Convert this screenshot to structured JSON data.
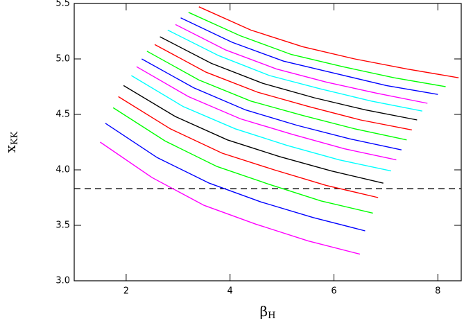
{
  "chart_data": {
    "type": "line",
    "xlabel": "β",
    "xlabel_sub": "H",
    "ylabel": "x",
    "ylabel_sub": "KK",
    "xlim": [
      1,
      8.45
    ],
    "xticks": [
      2,
      4,
      6,
      8
    ],
    "ylim": [
      3.0,
      5.5
    ],
    "yticks": [
      {
        "value": 3.0,
        "label": "3.0"
      },
      3.5,
      {
        "value": 4.0,
        "label": "4.0"
      },
      4.5,
      {
        "value": 5.0,
        "label": "5.0"
      },
      5.5
    ],
    "hline": 3.83,
    "series": [
      {
        "color": "#ff00ff",
        "x": [
          1.5,
          2.5,
          3.5,
          4.5,
          5.5,
          6.5
        ],
        "values": [
          4.25,
          3.93,
          3.68,
          3.51,
          3.36,
          3.24
        ]
      },
      {
        "color": "#0000ff",
        "x": [
          1.6,
          2.6,
          3.6,
          4.6,
          5.6,
          6.6
        ],
        "values": [
          4.42,
          4.11,
          3.88,
          3.71,
          3.57,
          3.45
        ]
      },
      {
        "color": "#00ff00",
        "x": [
          1.75,
          2.75,
          3.75,
          4.75,
          5.75,
          6.75
        ],
        "values": [
          4.56,
          4.26,
          4.03,
          3.87,
          3.72,
          3.61
        ]
      },
      {
        "color": "#ff0000",
        "x": [
          1.85,
          2.85,
          3.85,
          4.85,
          5.85,
          6.85
        ],
        "values": [
          4.66,
          4.37,
          4.15,
          4.0,
          3.86,
          3.75
        ]
      },
      {
        "color": "#000000",
        "x": [
          1.95,
          2.95,
          3.95,
          4.95,
          5.95,
          6.95
        ],
        "values": [
          4.76,
          4.48,
          4.27,
          4.12,
          3.99,
          3.88
        ]
      },
      {
        "color": "#00ffff",
        "x": [
          2.1,
          3.1,
          4.1,
          5.1,
          6.1,
          7.1
        ],
        "values": [
          4.85,
          4.57,
          4.37,
          4.22,
          4.09,
          3.99
        ]
      },
      {
        "color": "#ff00ff",
        "x": [
          2.2,
          3.2,
          4.2,
          5.2,
          6.2,
          7.2
        ],
        "values": [
          4.93,
          4.66,
          4.46,
          4.32,
          4.19,
          4.09
        ]
      },
      {
        "color": "#0000ff",
        "x": [
          2.3,
          3.3,
          4.3,
          5.3,
          6.3,
          7.3
        ],
        "values": [
          5.0,
          4.74,
          4.54,
          4.4,
          4.28,
          4.18
        ]
      },
      {
        "color": "#00ff00",
        "x": [
          2.4,
          3.4,
          4.4,
          5.4,
          6.4,
          7.4
        ],
        "values": [
          5.07,
          4.81,
          4.62,
          4.49,
          4.37,
          4.27
        ]
      },
      {
        "color": "#ff0000",
        "x": [
          2.55,
          3.54,
          4.53,
          5.52,
          6.51,
          7.5
        ],
        "values": [
          5.13,
          4.88,
          4.7,
          4.57,
          4.45,
          4.36
        ]
      },
      {
        "color": "#000000",
        "x": [
          2.65,
          3.64,
          4.63,
          5.62,
          6.61,
          7.6
        ],
        "values": [
          5.2,
          4.96,
          4.78,
          4.65,
          4.54,
          4.45
        ]
      },
      {
        "color": "#00ffff",
        "x": [
          2.8,
          3.78,
          4.76,
          5.74,
          6.72,
          7.7
        ],
        "values": [
          5.26,
          5.03,
          4.85,
          4.73,
          4.62,
          4.53
        ]
      },
      {
        "color": "#ff00ff",
        "x": [
          2.95,
          3.92,
          4.89,
          5.86,
          6.83,
          7.8
        ],
        "values": [
          5.31,
          5.08,
          4.91,
          4.79,
          4.69,
          4.6
        ]
      },
      {
        "color": "#0000ff",
        "x": [
          3.05,
          4.04,
          5.03,
          6.02,
          7.01,
          8.0
        ],
        "values": [
          5.37,
          5.15,
          4.98,
          4.87,
          4.76,
          4.68
        ]
      },
      {
        "color": "#00ff00",
        "x": [
          3.2,
          4.19,
          5.18,
          6.17,
          7.16,
          8.15
        ],
        "values": [
          5.42,
          5.21,
          5.04,
          4.93,
          4.83,
          4.75
        ]
      },
      {
        "color": "#ff0000",
        "x": [
          3.4,
          4.4,
          5.4,
          6.4,
          7.4,
          8.4
        ],
        "values": [
          5.47,
          5.26,
          5.11,
          5.0,
          4.91,
          4.83
        ]
      }
    ]
  }
}
